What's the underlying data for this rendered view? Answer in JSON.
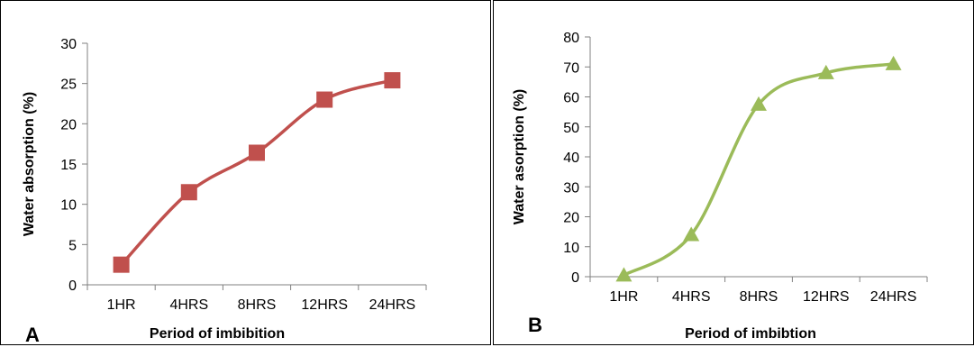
{
  "chart_data": [
    {
      "type": "line",
      "panel_label": "A",
      "categories": [
        "1HR",
        "4HRS",
        "8HRS",
        "12HRS",
        "24HRS"
      ],
      "series": [
        {
          "values": [
            2.5,
            11.5,
            16.4,
            23.0,
            25.4
          ]
        }
      ],
      "xlabel": "Period of imbibition",
      "ylabel": "Water absorption (%)",
      "ylim": [
        0,
        30
      ],
      "yticks": [
        0,
        5,
        10,
        15,
        20,
        25,
        30
      ],
      "marker": "square",
      "color": "#c0504d",
      "grid": false,
      "smooth": true
    },
    {
      "type": "line",
      "panel_label": "B",
      "categories": [
        "1HR",
        "4HRS",
        "8HRS",
        "12HRS",
        "24HRS"
      ],
      "series": [
        {
          "values": [
            0.5,
            14,
            57.5,
            68,
            71
          ]
        }
      ],
      "xlabel": "Period of imbibtion",
      "ylabel": "Water asorption (%)",
      "ylim": [
        0,
        80
      ],
      "yticks": [
        0,
        10,
        20,
        30,
        40,
        50,
        60,
        70,
        80
      ],
      "marker": "triangle",
      "color": "#9bbb59",
      "grid": false,
      "smooth": true
    }
  ]
}
